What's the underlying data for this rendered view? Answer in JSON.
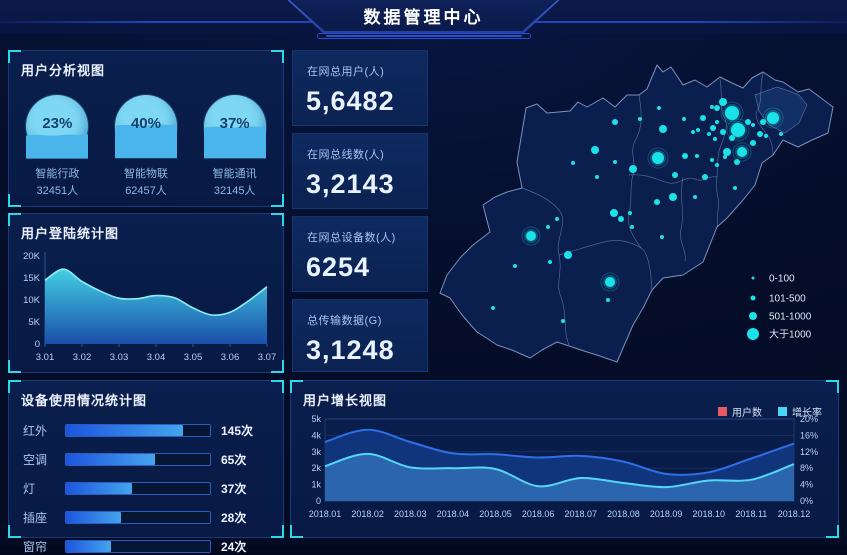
{
  "header": {
    "title": "数据管理中心"
  },
  "panels": {
    "user_analysis": {
      "title": "用户分析视图"
    },
    "login_stats": {
      "title": "用户登陆统计图"
    },
    "device_usage": {
      "title": "设备使用情况统计图"
    },
    "user_growth": {
      "title": "用户增长视图"
    }
  },
  "stats": [
    {
      "label": "在网总用户(人)",
      "value": "5,6482"
    },
    {
      "label": "在网总线数(人)",
      "value": "3,2143"
    },
    {
      "label": "在网总设备数(人)",
      "value": "6254"
    },
    {
      "label": "总传输数据(G)",
      "value": "3,1248"
    }
  ],
  "colors": {
    "accent_cyan": "#2cd9e8",
    "dot": "#19e3e8",
    "user_series_stroke": "#2e6fe8",
    "user_series_fill": "#12377f",
    "rate_series_stroke": "#54d6f6",
    "rate_series_fill": "rgba(64,140,215,0.55)",
    "legend_user": "#e85a62",
    "legend_rate": "#49d6f2",
    "login_grad_top": "#46d9ec",
    "login_grad_bottom": "#1c55b4",
    "axis_text": "#b9d2f2",
    "map_fill": "#0b1f4e",
    "map_border": "rgba(150,175,220,0.8)"
  },
  "chart_data": [
    {
      "id": "user_gauges",
      "type": "gauge",
      "items": [
        {
          "percent": "23%",
          "pct": 23,
          "name": "智能行政",
          "count": "32451人"
        },
        {
          "percent": "40%",
          "pct": 40,
          "name": "智能物联",
          "count": "62457人"
        },
        {
          "percent": "37%",
          "pct": 37,
          "name": "智能通讯",
          "count": "32145人"
        }
      ]
    },
    {
      "id": "login_area",
      "type": "area",
      "title": "用户登陆统计图",
      "x_ticks": [
        "3.01",
        "3.02",
        "3.03",
        "3.04",
        "3.05",
        "3.06",
        "3.07"
      ],
      "y_ticks": [
        "0",
        "5K",
        "10K",
        "15K",
        "20K"
      ],
      "ylim": [
        0,
        20
      ],
      "sample_t": [
        0,
        0.5,
        1,
        1.5,
        2,
        2.5,
        3,
        3.5,
        4,
        4.5,
        5,
        5.5,
        6
      ],
      "sample_y": [
        14.5,
        17,
        14.2,
        12,
        10.4,
        10.3,
        11,
        10.5,
        8.2,
        6.6,
        7.2,
        9.8,
        13
      ]
    },
    {
      "id": "device_bars",
      "type": "bar",
      "title": "设备使用情况统计图",
      "categories": [
        "红外",
        "空调",
        "灯",
        "插座",
        "窗帘"
      ],
      "values": [
        145,
        65,
        37,
        28,
        24
      ],
      "unit": "次",
      "track_pct": [
        81,
        62,
        46,
        38,
        31
      ]
    },
    {
      "id": "user_growth",
      "type": "area",
      "title": "用户增长视图",
      "categories": [
        "2018.01",
        "2018.02",
        "2018.03",
        "2018.04",
        "2018.05",
        "2018.06",
        "2018.07",
        "2018.08",
        "2018.09",
        "2018.10",
        "2018.11",
        "2018.12"
      ],
      "series": [
        {
          "name": "用户数",
          "axis": "left",
          "values": [
            3.6,
            4.35,
            3.6,
            2.9,
            2.85,
            2.65,
            2.75,
            2.4,
            1.65,
            1.75,
            2.6,
            3.5
          ]
        },
        {
          "name": "增长率",
          "axis": "right",
          "values": [
            8.5,
            11.5,
            8.2,
            8.0,
            7.8,
            3.6,
            5.6,
            4.4,
            3.4,
            5.0,
            5.2,
            9.0
          ]
        }
      ],
      "left_ticks": [
        "0",
        "1k",
        "2k",
        "3k",
        "4k",
        "5k"
      ],
      "right_ticks": [
        "0%",
        "4%",
        "8%",
        "12%",
        "16%",
        "20%"
      ],
      "left_lim": [
        0,
        5
      ],
      "right_lim": [
        0,
        20
      ],
      "legend": [
        {
          "label": "用户数",
          "color": "#e85a62"
        },
        {
          "label": "增长率",
          "color": "#49d6f2"
        }
      ]
    },
    {
      "id": "map_scatter",
      "type": "scatter",
      "legend": [
        {
          "label": "0-100",
          "r": 1.5
        },
        {
          "label": "101-500",
          "r": 2.5
        },
        {
          "label": "501-1000",
          "r": 4
        },
        {
          "label": "大于1000",
          "r": 6
        }
      ],
      "dots": [
        [
          222,
          63,
          2
        ],
        [
          178,
          77,
          3
        ],
        [
          203,
          74,
          2
        ],
        [
          226,
          84,
          4
        ],
        [
          247,
          74,
          2
        ],
        [
          256,
          87,
          2
        ],
        [
          266,
          73,
          3
        ],
        [
          275,
          62,
          2
        ],
        [
          280,
          63,
          3
        ],
        [
          286,
          57,
          4
        ],
        [
          295,
          68,
          7
        ],
        [
          301,
          85,
          7
        ],
        [
          311,
          77,
          3
        ],
        [
          316,
          80,
          2
        ],
        [
          326,
          77,
          3
        ],
        [
          336,
          73,
          6
        ],
        [
          323,
          89,
          3
        ],
        [
          329,
          91,
          2
        ],
        [
          344,
          89,
          2
        ],
        [
          280,
          77,
          2
        ],
        [
          276,
          83,
          3
        ],
        [
          272,
          89,
          2
        ],
        [
          278,
          94,
          2
        ],
        [
          286,
          87,
          3
        ],
        [
          295,
          93,
          3
        ],
        [
          290,
          107,
          4
        ],
        [
          305,
          107,
          5
        ],
        [
          316,
          98,
          3
        ],
        [
          275,
          115,
          2
        ],
        [
          280,
          120,
          2
        ],
        [
          288,
          112,
          2
        ],
        [
          300,
          117,
          3
        ],
        [
          261,
          85,
          2
        ],
        [
          248,
          111,
          3
        ],
        [
          260,
          111,
          2
        ],
        [
          221,
          113,
          6
        ],
        [
          196,
          124,
          4
        ],
        [
          178,
          117,
          2
        ],
        [
          158,
          105,
          4
        ],
        [
          136,
          118,
          2
        ],
        [
          160,
          132,
          2
        ],
        [
          238,
          130,
          3
        ],
        [
          268,
          132,
          3
        ],
        [
          298,
          143,
          2
        ],
        [
          236,
          152,
          4
        ],
        [
          258,
          152,
          2
        ],
        [
          220,
          157,
          3
        ],
        [
          193,
          168,
          2
        ],
        [
          177,
          168,
          4
        ],
        [
          184,
          174,
          3
        ],
        [
          225,
          192,
          2
        ],
        [
          120,
          174,
          2
        ],
        [
          94,
          191,
          5
        ],
        [
          111,
          182,
          2
        ],
        [
          131,
          210,
          4
        ],
        [
          113,
          217,
          2
        ],
        [
          78,
          221,
          2
        ],
        [
          173,
          237,
          5
        ],
        [
          171,
          255,
          2
        ],
        [
          56,
          263,
          2
        ],
        [
          126,
          276,
          2
        ],
        [
          195,
          182,
          2
        ]
      ]
    }
  ]
}
